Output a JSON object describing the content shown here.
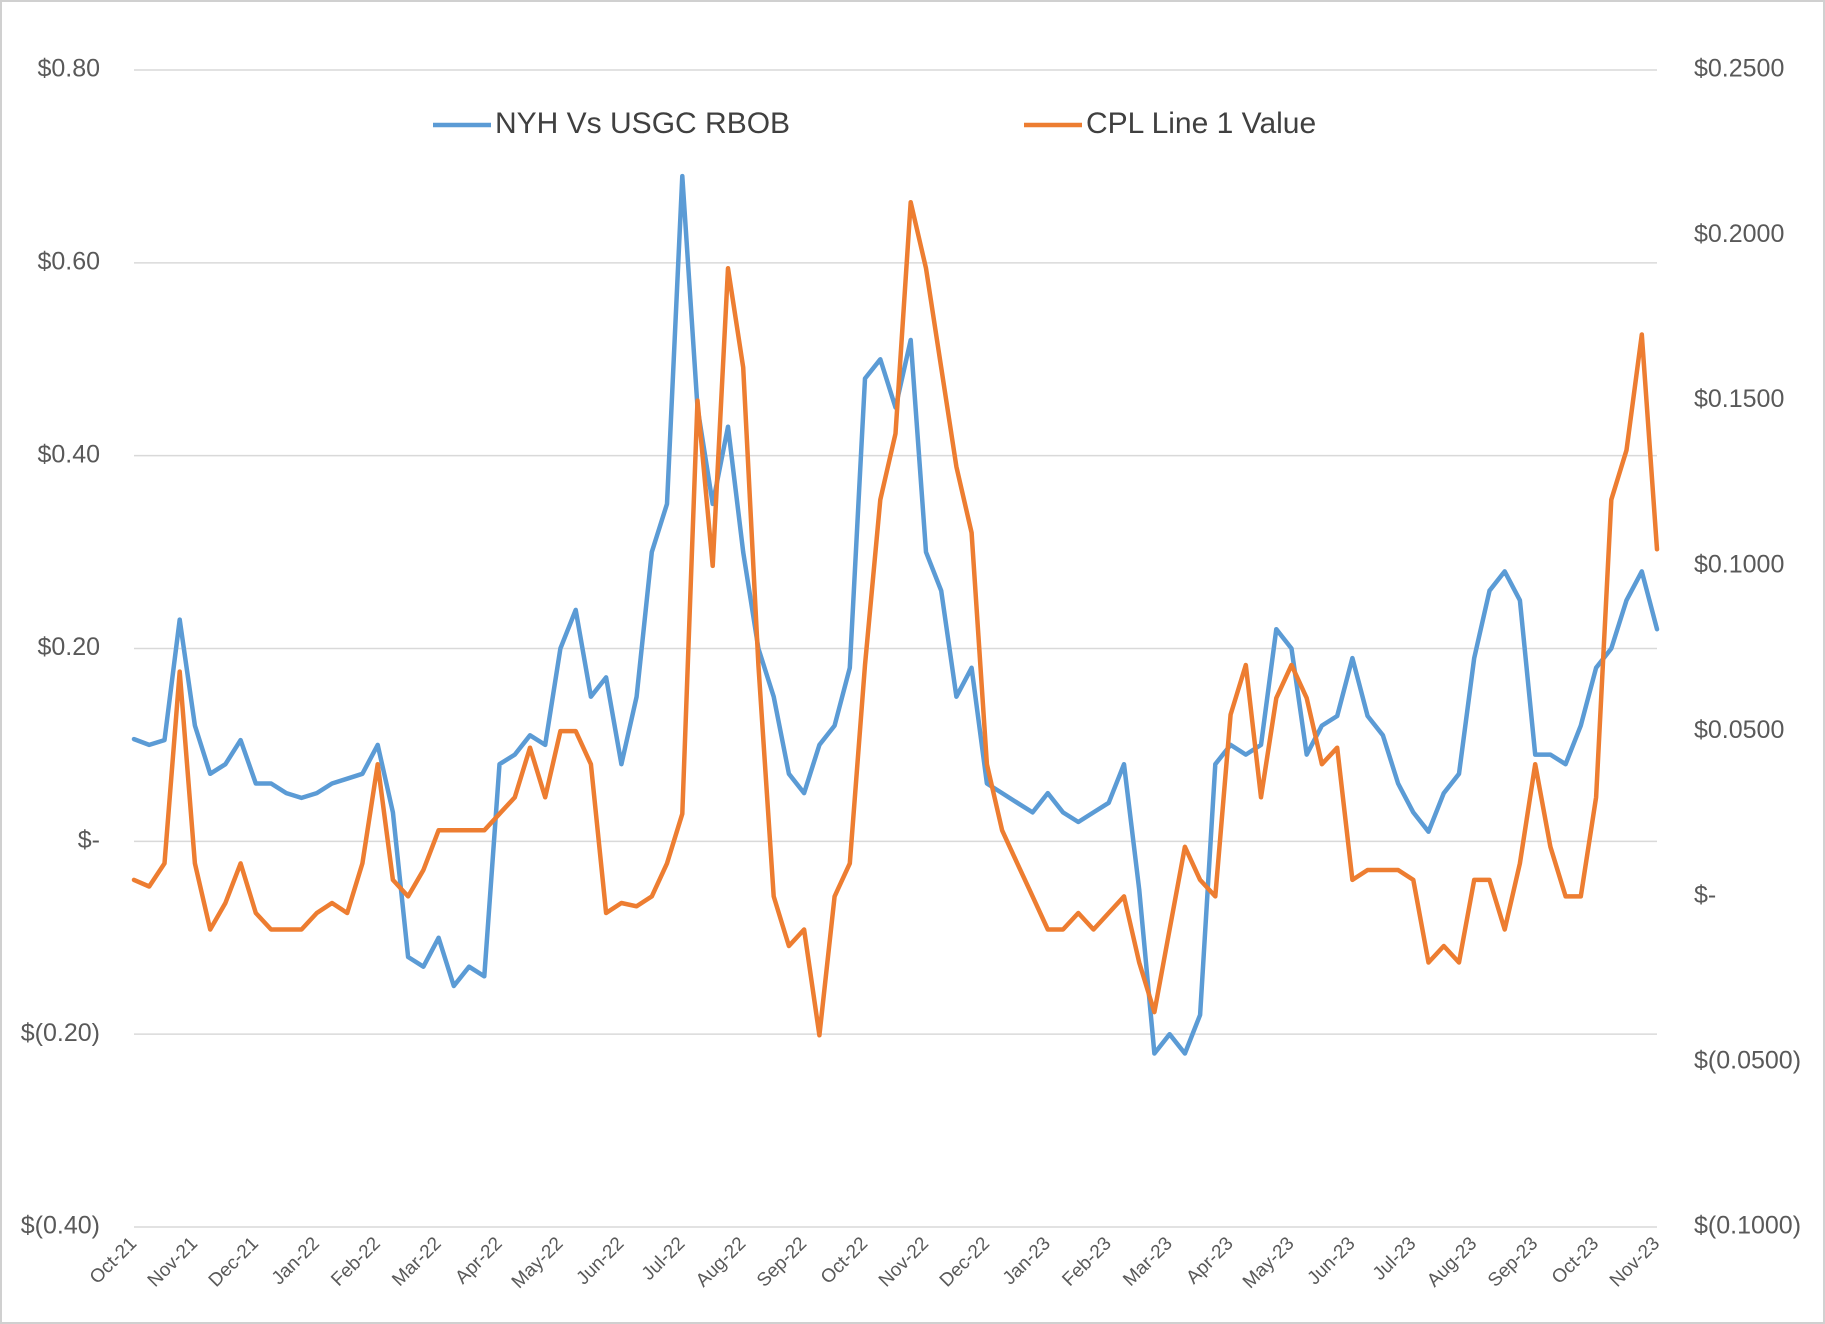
{
  "chart_data": {
    "type": "line",
    "categories": [
      "Oct-21",
      null,
      null,
      null,
      "Nov-21",
      null,
      null,
      null,
      "Dec-21",
      null,
      null,
      null,
      "Jan-22",
      null,
      null,
      null,
      "Feb-22",
      null,
      null,
      null,
      "Mar-22",
      null,
      null,
      null,
      "Apr-22",
      null,
      null,
      null,
      "May-22",
      null,
      null,
      null,
      "Jun-22",
      null,
      null,
      null,
      "Jul-22",
      null,
      null,
      null,
      "Aug-22",
      null,
      null,
      null,
      "Sep-22",
      null,
      null,
      null,
      "Oct-22",
      null,
      null,
      null,
      "Nov-22",
      null,
      null,
      null,
      "Dec-22",
      null,
      null,
      null,
      "Jan-23",
      null,
      null,
      null,
      "Feb-23",
      null,
      null,
      null,
      "Mar-23",
      null,
      null,
      null,
      "Apr-23",
      null,
      null,
      null,
      "May-23",
      null,
      null,
      null,
      "Jun-23",
      null,
      null,
      null,
      "Jul-23",
      null,
      null,
      null,
      "Aug-23",
      null,
      null,
      null,
      "Sep-23",
      null,
      null,
      null,
      "Oct-23",
      null,
      null,
      null,
      "Nov-23"
    ],
    "series": [
      {
        "name": "NYH Vs USGC RBOB",
        "color": "#5b9bd5",
        "axis": "y",
        "values": [
          0.106,
          0.1,
          0.105,
          0.23,
          0.12,
          0.07,
          0.08,
          0.105,
          0.06,
          0.06,
          0.05,
          0.045,
          0.05,
          0.06,
          0.065,
          0.07,
          0.1,
          0.03,
          -0.12,
          -0.13,
          -0.1,
          -0.15,
          -0.13,
          -0.14,
          0.08,
          0.09,
          0.11,
          0.1,
          0.2,
          0.24,
          0.15,
          0.17,
          0.08,
          0.15,
          0.3,
          0.35,
          0.69,
          0.45,
          0.35,
          0.43,
          0.3,
          0.2,
          0.15,
          0.07,
          0.05,
          0.1,
          0.12,
          0.18,
          0.48,
          0.5,
          0.45,
          0.52,
          0.3,
          0.26,
          0.15,
          0.18,
          0.06,
          0.05,
          0.04,
          0.03,
          0.05,
          0.03,
          0.02,
          0.03,
          0.04,
          0.08,
          -0.05,
          -0.22,
          -0.2,
          -0.22,
          -0.18,
          0.08,
          0.1,
          0.09,
          0.1,
          0.22,
          0.2,
          0.09,
          0.12,
          0.13,
          0.19,
          0.13,
          0.11,
          0.06,
          0.03,
          0.01,
          0.05,
          0.07,
          0.19,
          0.26,
          0.28,
          0.25,
          0.09,
          0.09,
          0.08,
          0.12,
          0.18,
          0.2,
          0.25,
          0.28,
          0.22
        ]
      },
      {
        "name": "CPL Line 1 Value",
        "color": "#ed7d31",
        "axis": "y2",
        "values": [
          0.005,
          0.003,
          0.01,
          0.068,
          0.01,
          -0.01,
          -0.002,
          0.01,
          -0.005,
          -0.01,
          -0.01,
          -0.01,
          -0.005,
          -0.002,
          -0.005,
          0.01,
          0.04,
          0.005,
          0.0,
          0.008,
          0.02,
          0.02,
          0.02,
          0.02,
          0.025,
          0.03,
          0.045,
          0.03,
          0.05,
          0.05,
          0.04,
          -0.005,
          -0.002,
          -0.003,
          0.0,
          0.01,
          0.025,
          0.15,
          0.1,
          0.19,
          0.16,
          0.07,
          0.0,
          -0.015,
          -0.01,
          -0.042,
          0.0,
          0.01,
          0.07,
          0.12,
          0.14,
          0.21,
          0.19,
          0.16,
          0.13,
          0.11,
          0.04,
          0.02,
          0.01,
          0.0,
          -0.01,
          -0.01,
          -0.005,
          -0.01,
          -0.005,
          0.0,
          -0.02,
          -0.035,
          -0.01,
          0.015,
          0.005,
          0.0,
          0.055,
          0.07,
          0.03,
          0.06,
          0.07,
          0.06,
          0.04,
          0.045,
          0.005,
          0.008,
          0.008,
          0.008,
          0.005,
          -0.02,
          -0.015,
          -0.02,
          0.005,
          0.005,
          -0.01,
          0.01,
          0.04,
          0.015,
          0.0,
          0.0,
          0.03,
          0.12,
          0.135,
          0.17,
          0.105
        ]
      }
    ],
    "ylim": [
      -0.4,
      0.8
    ],
    "yticks": [
      {
        "value": -0.4,
        "label": "$(0.40)"
      },
      {
        "value": -0.2,
        "label": "$(0.20)"
      },
      {
        "value": 0,
        "label": "$-"
      },
      {
        "value": 0.2,
        "label": "$0.20"
      },
      {
        "value": 0.4,
        "label": "$0.40"
      },
      {
        "value": 0.6,
        "label": "$0.60"
      },
      {
        "value": 0.8,
        "label": "$0.80"
      }
    ],
    "y2lim": [
      -0.1,
      0.25
    ],
    "y2ticks": [
      {
        "value": -0.1,
        "label": "$(0.1000)"
      },
      {
        "value": -0.05,
        "label": "$(0.0500)"
      },
      {
        "value": 0,
        "label": "$-"
      },
      {
        "value": 0.05,
        "label": "$0.0500"
      },
      {
        "value": 0.1,
        "label": "$0.1000"
      },
      {
        "value": 0.15,
        "label": "$0.1500"
      },
      {
        "value": 0.2,
        "label": "$0.2000"
      },
      {
        "value": 0.25,
        "label": "$0.2500"
      }
    ],
    "grid": true,
    "legend": "top"
  }
}
